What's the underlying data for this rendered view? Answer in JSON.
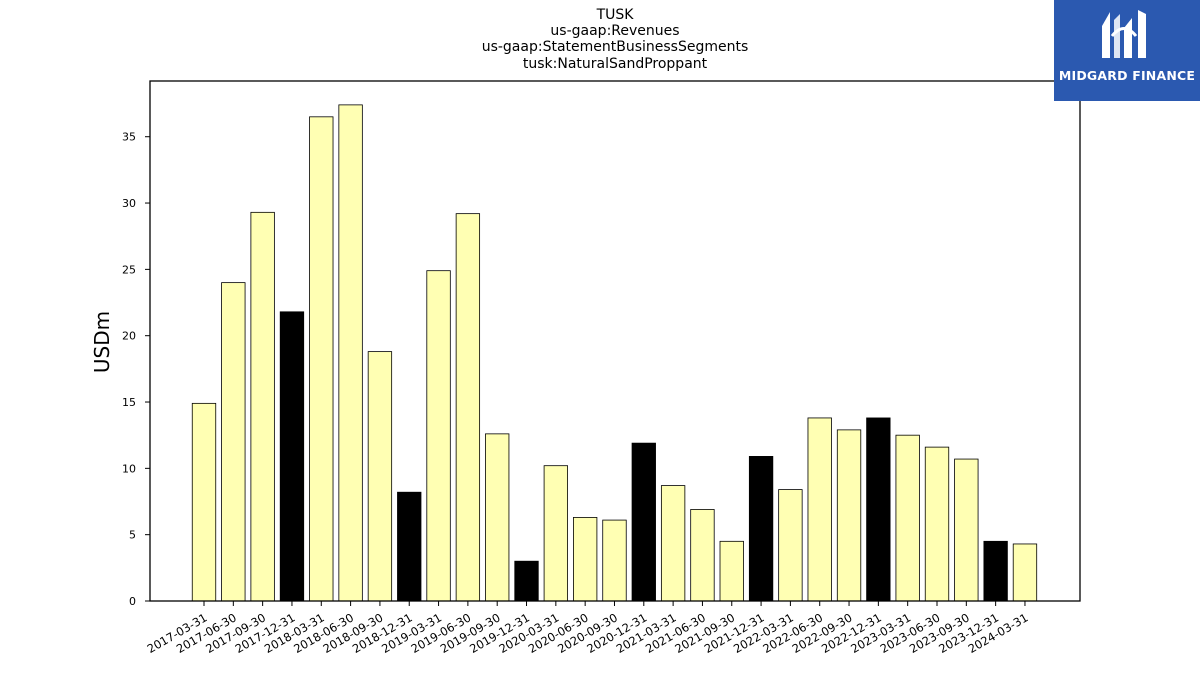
{
  "chart_data": {
    "type": "bar",
    "title_lines": [
      "TUSK",
      "us-gaap:Revenues",
      "us-gaap:StatementBusinessSegments",
      "tusk:NaturalSandProppant"
    ],
    "xlabel": "",
    "ylabel": "USDm",
    "ylim": [
      0,
      39.2
    ],
    "yticks": [
      0,
      5,
      10,
      15,
      20,
      25,
      30,
      35
    ],
    "grid": false,
    "categories": [
      "2017-03-31",
      "2017-06-30",
      "2017-09-30",
      "2017-12-31",
      "2018-03-31",
      "2018-06-30",
      "2018-09-30",
      "2018-12-31",
      "2019-03-31",
      "2019-06-30",
      "2019-09-30",
      "2019-12-31",
      "2020-03-31",
      "2020-06-30",
      "2020-09-30",
      "2020-12-31",
      "2021-03-31",
      "2021-06-30",
      "2021-09-30",
      "2021-12-31",
      "2022-03-31",
      "2022-06-30",
      "2022-09-30",
      "2022-12-31",
      "2023-03-31",
      "2023-06-30",
      "2023-09-30",
      "2023-12-31",
      "2024-03-31"
    ],
    "values": [
      14.9,
      24.0,
      29.3,
      21.8,
      36.5,
      37.4,
      18.8,
      8.2,
      24.9,
      29.2,
      12.6,
      3.0,
      10.2,
      6.3,
      6.1,
      11.9,
      8.7,
      6.9,
      4.5,
      10.9,
      8.4,
      13.8,
      12.9,
      13.8,
      12.5,
      11.6,
      10.7,
      4.5,
      4.3
    ],
    "bar_colors": [
      "#ffffb3",
      "#ffffb3",
      "#ffffb3",
      "#000000",
      "#ffffb3",
      "#ffffb3",
      "#ffffb3",
      "#000000",
      "#ffffb3",
      "#ffffb3",
      "#ffffb3",
      "#000000",
      "#ffffb3",
      "#ffffb3",
      "#ffffb3",
      "#000000",
      "#ffffb3",
      "#ffffb3",
      "#ffffb3",
      "#000000",
      "#ffffb3",
      "#ffffb3",
      "#ffffb3",
      "#000000",
      "#ffffb3",
      "#ffffb3",
      "#ffffb3",
      "#000000",
      "#ffffb3"
    ]
  },
  "logo": {
    "text": "MIDGARD FINANCE",
    "bg_color": "#2b59b0"
  }
}
